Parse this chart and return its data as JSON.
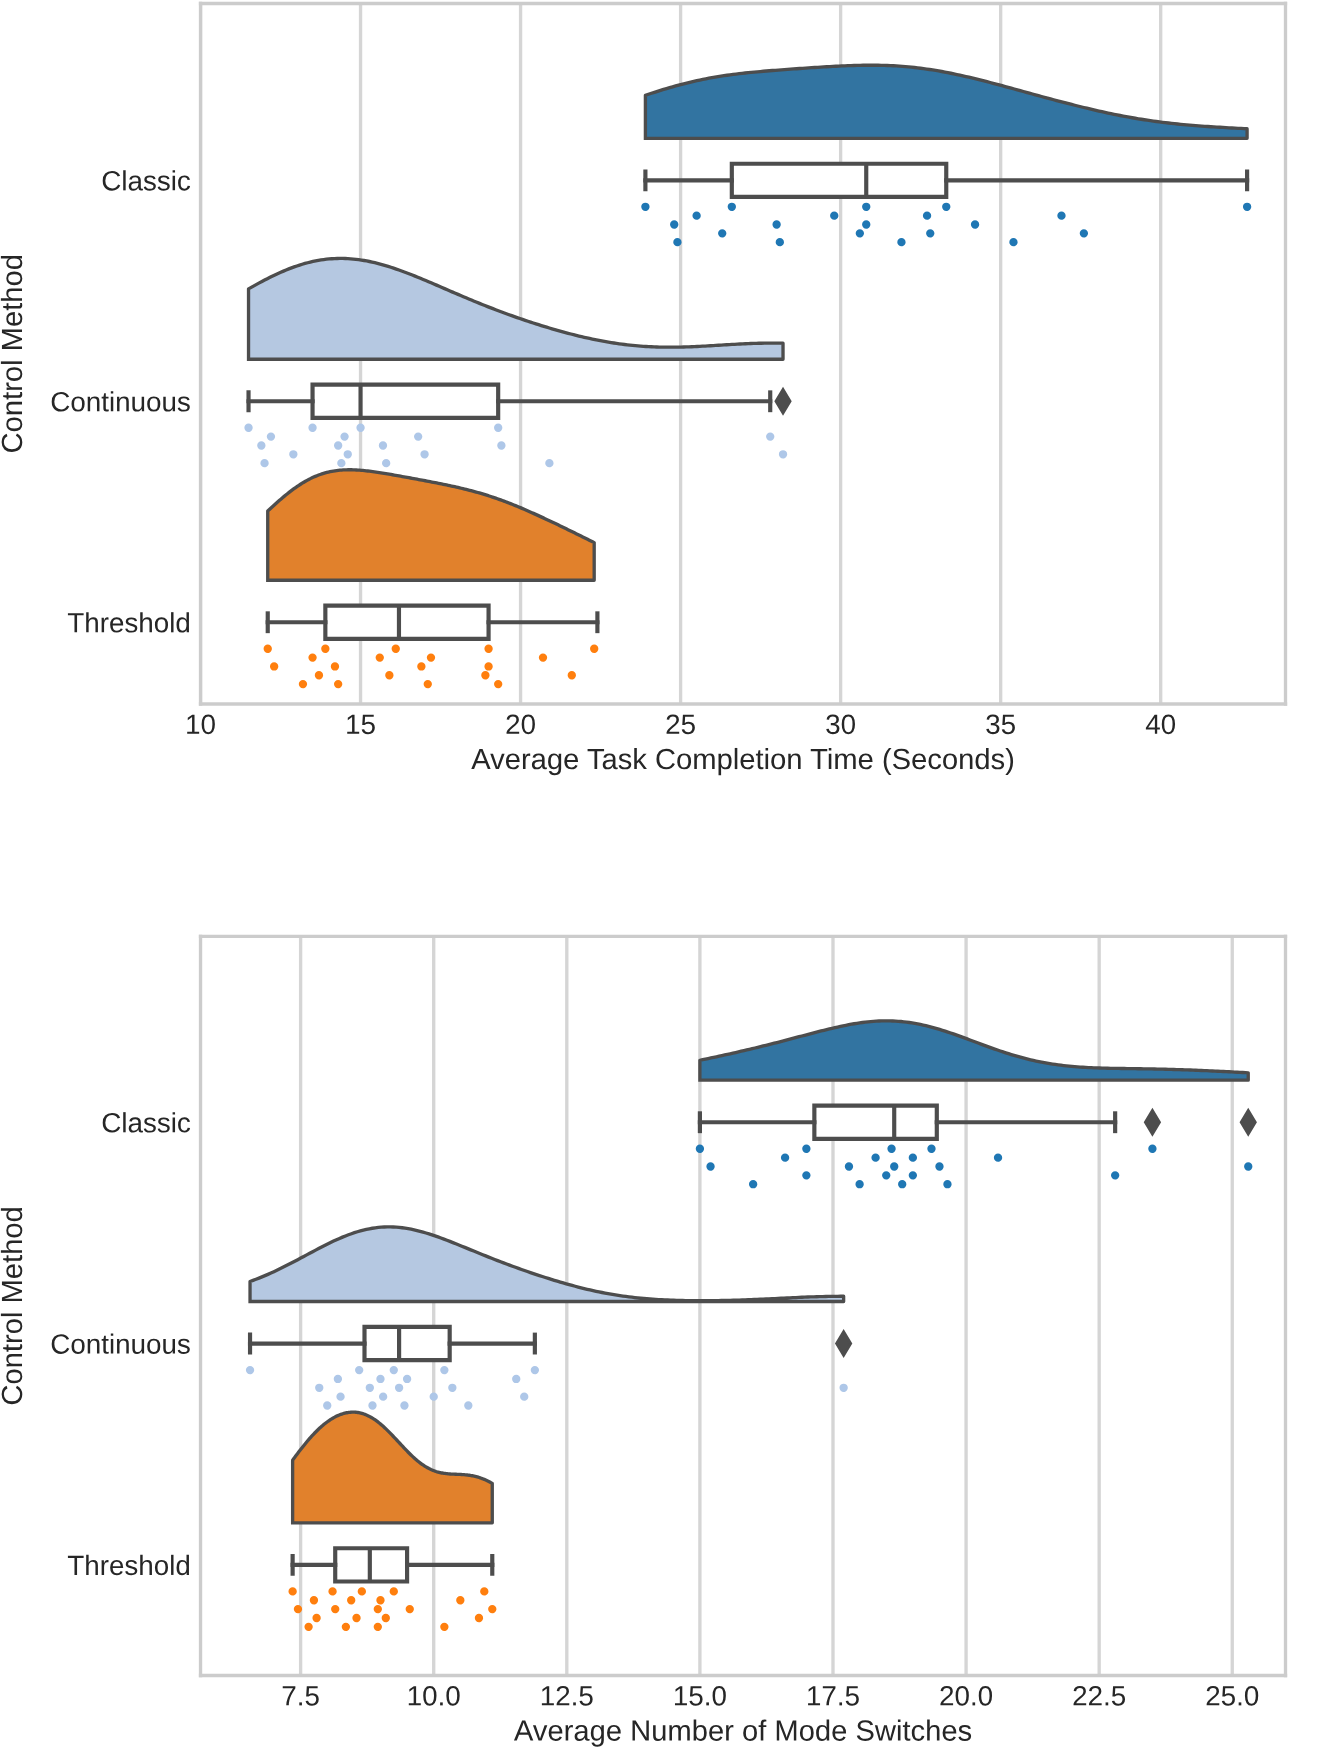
{
  "chart_data": [
    {
      "type": "box",
      "orientation": "horizontal",
      "xlabel": "Average Task Completion Time (Seconds)",
      "ylabel": "Control Method",
      "categories": [
        "Classic",
        "Continuous",
        "Threshold"
      ],
      "xlim": [
        10,
        43.9
      ],
      "xticks": [
        10,
        15,
        20,
        25,
        30,
        35,
        40
      ],
      "grid": "x",
      "marker": "circle",
      "boxes": [
        {
          "low": 23.9,
          "q1": 26.6,
          "median": 30.8,
          "q3": 33.3,
          "high": 42.7
        },
        {
          "low": 11.5,
          "q1": 13.5,
          "median": 15.0,
          "q3": 19.3,
          "high": 27.8,
          "outliers": [
            28.2
          ]
        },
        {
          "low": 12.1,
          "q1": 13.9,
          "median": 16.2,
          "q3": 19.0,
          "high": 22.4
        }
      ],
      "series": [
        {
          "type": "scatter",
          "color": "#1f77b4",
          "x": [
            "Classic",
            "Classic",
            "Classic",
            "Classic",
            "Classic",
            "Classic",
            "Classic",
            "Classic",
            "Classic",
            "Classic",
            "Classic",
            "Classic",
            "Classic",
            "Classic",
            "Classic",
            "Classic",
            "Classic",
            "Classic",
            "Classic",
            "Classic",
            "Classic"
          ],
          "values": [
            23.9,
            24.8,
            24.9,
            25.5,
            26.3,
            26.6,
            28.0,
            28.1,
            29.8,
            30.6,
            30.8,
            30.8,
            31.9,
            32.7,
            32.8,
            33.3,
            34.2,
            35.4,
            36.9,
            37.6,
            42.7
          ]
        },
        {
          "type": "scatter",
          "color": "#aec7e8",
          "x": [
            "Continuous",
            "Continuous",
            "Continuous",
            "Continuous",
            "Continuous",
            "Continuous",
            "Continuous",
            "Continuous",
            "Continuous",
            "Continuous",
            "Continuous",
            "Continuous",
            "Continuous",
            "Continuous",
            "Continuous",
            "Continuous",
            "Continuous",
            "Continuous",
            "Continuous",
            "Continuous"
          ],
          "values": [
            11.5,
            11.9,
            12.0,
            12.2,
            12.9,
            13.5,
            14.3,
            14.4,
            14.5,
            14.6,
            15.0,
            15.7,
            15.8,
            16.8,
            17.0,
            19.3,
            19.4,
            20.9,
            27.8,
            28.2
          ]
        },
        {
          "type": "scatter",
          "color": "#ff7f0e",
          "x": [
            "Threshold",
            "Threshold",
            "Threshold",
            "Threshold",
            "Threshold",
            "Threshold",
            "Threshold",
            "Threshold",
            "Threshold",
            "Threshold",
            "Threshold",
            "Threshold",
            "Threshold",
            "Threshold",
            "Threshold",
            "Threshold",
            "Threshold",
            "Threshold",
            "Threshold",
            "Threshold",
            "Threshold"
          ],
          "values": [
            12.1,
            12.3,
            13.2,
            13.5,
            13.7,
            13.9,
            14.2,
            14.3,
            15.6,
            15.9,
            16.1,
            16.9,
            17.1,
            17.2,
            18.9,
            19.0,
            19.0,
            19.3,
            20.7,
            21.6,
            22.3
          ]
        }
      ]
    },
    {
      "type": "box",
      "orientation": "horizontal",
      "xlabel": "Average Number of Mode Switches",
      "ylabel": "Control Method",
      "categories": [
        "Classic",
        "Continuous",
        "Threshold"
      ],
      "xlim": [
        5.62,
        26.0
      ],
      "xticks": [
        {
          "value": 7.5,
          "label": "7.5"
        },
        {
          "value": 10,
          "label": "10.0"
        },
        {
          "value": 12.5,
          "label": "12.5"
        },
        {
          "value": 15,
          "label": "15.0"
        },
        {
          "value": 17.5,
          "label": "17.5"
        },
        {
          "value": 20,
          "label": "20.0"
        },
        {
          "value": 22.5,
          "label": "22.5"
        },
        {
          "value": 25,
          "label": "25.0"
        }
      ],
      "grid": "x",
      "marker": "circle",
      "boxes": [
        {
          "low": 15.0,
          "q1": 17.15,
          "median": 18.65,
          "q3": 19.45,
          "high": 22.8,
          "outliers": [
            23.5,
            25.3
          ]
        },
        {
          "low": 6.55,
          "q1": 8.7,
          "median": 9.35,
          "q3": 10.3,
          "high": 11.9,
          "outliers": [
            17.7
          ]
        },
        {
          "low": 7.35,
          "q1": 8.15,
          "median": 8.8,
          "q3": 9.5,
          "high": 11.1
        }
      ],
      "series": [
        {
          "type": "scatter",
          "color": "#1f77b4",
          "x": [
            "Classic",
            "Classic",
            "Classic",
            "Classic",
            "Classic",
            "Classic",
            "Classic",
            "Classic",
            "Classic",
            "Classic",
            "Classic",
            "Classic",
            "Classic",
            "Classic",
            "Classic",
            "Classic",
            "Classic",
            "Classic",
            "Classic",
            "Classic",
            "Classic",
            "Classic"
          ],
          "values": [
            15.0,
            15.2,
            16.0,
            16.6,
            17.0,
            17.0,
            17.8,
            18.0,
            18.3,
            18.5,
            18.6,
            18.65,
            18.8,
            19.0,
            19.0,
            19.35,
            19.5,
            19.65,
            20.6,
            22.8,
            23.5,
            25.3
          ]
        },
        {
          "type": "scatter",
          "color": "#aec7e8",
          "x": [
            "Continuous",
            "Continuous",
            "Continuous",
            "Continuous",
            "Continuous",
            "Continuous",
            "Continuous",
            "Continuous",
            "Continuous",
            "Continuous",
            "Continuous",
            "Continuous",
            "Continuous",
            "Continuous",
            "Continuous",
            "Continuous",
            "Continuous",
            "Continuous",
            "Continuous",
            "Continuous",
            "Continuous",
            "Continuous"
          ],
          "values": [
            6.55,
            7.85,
            8.0,
            8.2,
            8.25,
            8.6,
            8.8,
            8.85,
            9.0,
            9.05,
            9.25,
            9.35,
            9.45,
            9.5,
            10.0,
            10.2,
            10.35,
            10.65,
            11.55,
            11.7,
            11.9,
            17.7
          ]
        },
        {
          "type": "scatter",
          "color": "#ff7f0e",
          "x": [
            "Threshold",
            "Threshold",
            "Threshold",
            "Threshold",
            "Threshold",
            "Threshold",
            "Threshold",
            "Threshold",
            "Threshold",
            "Threshold",
            "Threshold",
            "Threshold",
            "Threshold",
            "Threshold",
            "Threshold",
            "Threshold",
            "Threshold",
            "Threshold",
            "Threshold",
            "Threshold",
            "Threshold",
            "Threshold"
          ],
          "values": [
            7.35,
            7.45,
            7.65,
            7.75,
            7.8,
            8.1,
            8.15,
            8.35,
            8.45,
            8.55,
            8.65,
            8.95,
            8.95,
            9.0,
            9.1,
            9.25,
            9.55,
            10.2,
            10.5,
            10.85,
            10.95,
            11.1
          ]
        }
      ]
    }
  ]
}
